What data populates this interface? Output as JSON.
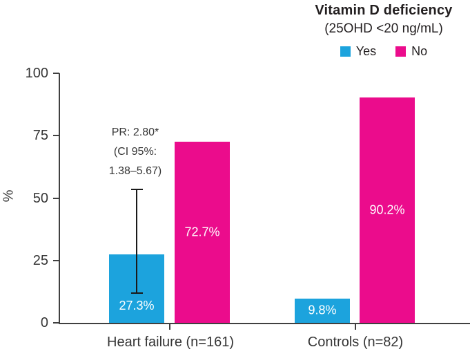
{
  "header": {
    "title": "Vitamin D deficiency",
    "subtitle": "(25OHD <20 ng/mL)",
    "legend": [
      {
        "label": "Yes",
        "color": "#1CA3DD"
      },
      {
        "label": "No",
        "color": "#EB0C8C"
      }
    ]
  },
  "chart_data": {
    "type": "bar",
    "title": "Vitamin D deficiency (25OHD <20 ng/mL)",
    "xlabel": "",
    "ylabel": "%",
    "ylim": [
      0,
      100
    ],
    "yticks": [
      0,
      25,
      50,
      75,
      100
    ],
    "grid": false,
    "legend_position": "top-right",
    "categories": [
      "Heart failure (n=161)",
      "Controls (n=82)"
    ],
    "series": [
      {
        "name": "Yes",
        "color": "#1CA3DD",
        "values": [
          27.3,
          9.8
        ],
        "labels": [
          "27.3%",
          "9.8%"
        ]
      },
      {
        "name": "No",
        "color": "#EB0C8C",
        "values": [
          72.7,
          90.2
        ],
        "labels": [
          "72.7%",
          "90.2%"
        ]
      }
    ],
    "annotation": {
      "lines": [
        "PR: 2.80*",
        "(CI 95%:",
        "1.38–5.67)"
      ],
      "attached_to": "Heart failure (n=161) / Yes bar"
    },
    "error_bar": {
      "series": "Yes",
      "category": "Heart failure (n=161)",
      "low": 12.0,
      "high": 53.5
    }
  }
}
